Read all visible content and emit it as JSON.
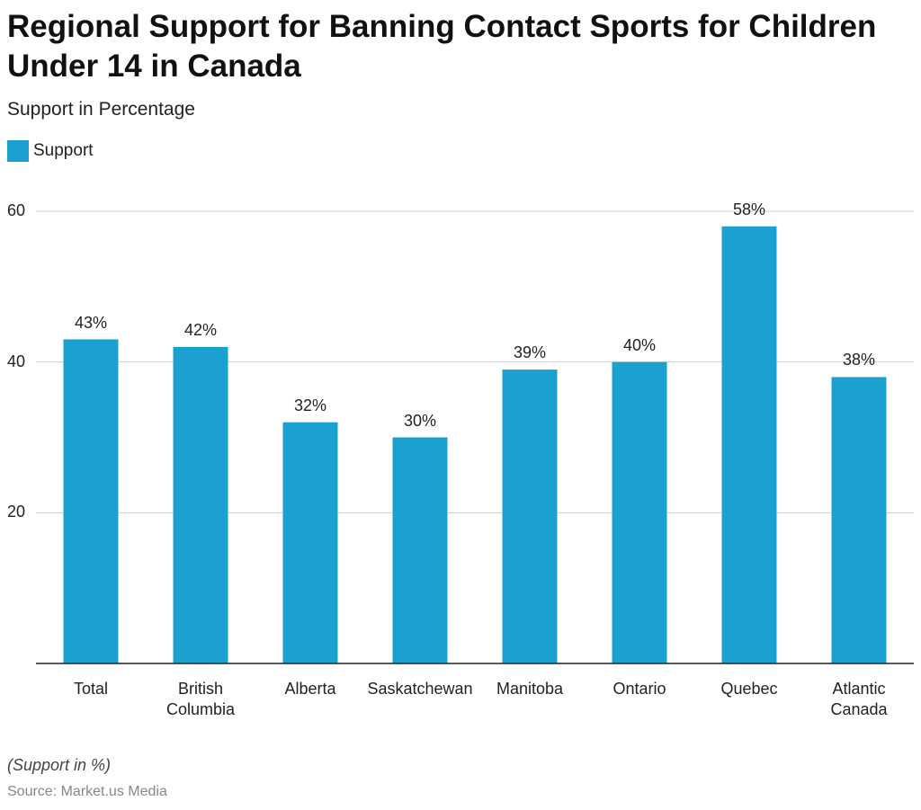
{
  "chart_data": {
    "type": "bar",
    "title": "Regional Support for Banning Contact Sports for Children Under 14 in Canada",
    "subtitle": "Support in Percentage",
    "categories": [
      "Total",
      "British Columbia",
      "Alberta",
      "Saskatchewan",
      "Manitoba",
      "Ontario",
      "Quebec",
      "Atlantic Canada"
    ],
    "series": [
      {
        "name": "Support",
        "color": "#1ba1d0",
        "values": [
          43,
          42,
          32,
          30,
          39,
          40,
          58,
          38
        ],
        "value_labels": [
          "43%",
          "42%",
          "32%",
          "30%",
          "39%",
          "40%",
          "58%",
          "38%"
        ]
      }
    ],
    "ylim": [
      0,
      60
    ],
    "yticks": [
      20,
      40,
      60
    ],
    "grid": true,
    "note": "(Support in %)",
    "source": "Source: Market.us Media"
  }
}
